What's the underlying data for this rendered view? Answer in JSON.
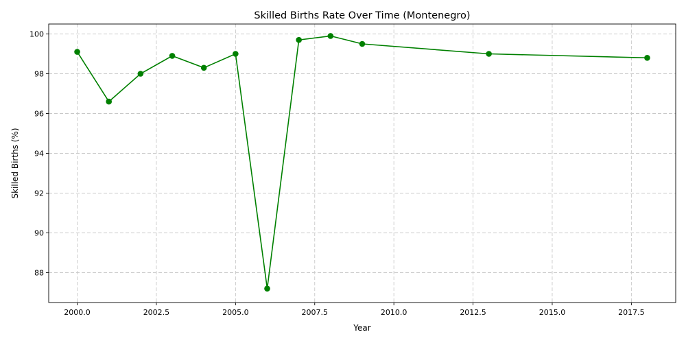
{
  "chart_data": {
    "type": "line",
    "title": "Skilled Births Rate Over Time (Montenegro)",
    "xlabel": "Year",
    "ylabel": "Skilled Births (%)",
    "xlim": [
      1999.1,
      2018.9
    ],
    "ylim": [
      86.5,
      100.5
    ],
    "xticks": [
      2000,
      2002.5,
      2005,
      2007.5,
      2010,
      2012.5,
      2015,
      2017.5
    ],
    "xtick_labels": [
      "2000.0",
      "2002.5",
      "2005.0",
      "2007.5",
      "2010.0",
      "2012.5",
      "2015.0",
      "2017.5"
    ],
    "yticks": [
      88,
      90,
      92,
      94,
      96,
      98,
      100
    ],
    "ytick_labels": [
      "88",
      "90",
      "92",
      "94",
      "96",
      "98",
      "100"
    ],
    "grid": true,
    "series": [
      {
        "color": "#008000",
        "marker": "circle",
        "x": [
          2000,
          2001,
          2002,
          2003,
          2004,
          2005,
          2006,
          2007,
          2008,
          2009,
          2013,
          2018
        ],
        "y": [
          99.1,
          96.6,
          98.0,
          98.9,
          98.3,
          99.0,
          87.2,
          99.7,
          99.9,
          99.5,
          99.0,
          98.8
        ]
      }
    ]
  }
}
